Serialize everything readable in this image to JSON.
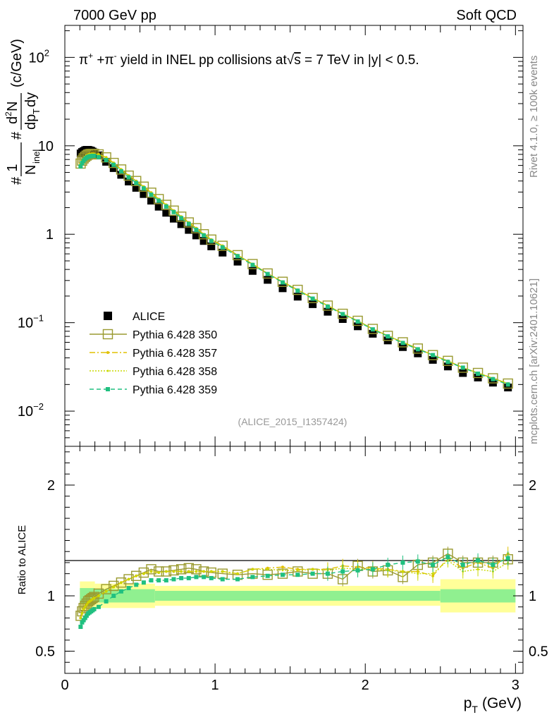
{
  "header": {
    "left": "7000 GeV pp",
    "right": "Soft QCD"
  },
  "side_labels": {
    "rivet": "Rivet 4.1.0, ≥ 100k events",
    "source": "mcplots.cern.ch [arXiv:2401.10621]"
  },
  "colors": {
    "data": "#000000",
    "p350": "#9a9a30",
    "p357": "#e0c000",
    "p358": "#c8d800",
    "p359": "#20c080",
    "band_inner": "#90f090",
    "band_outer": "#ffff99"
  },
  "chart_data": [
    {
      "type": "scatter",
      "panel": "main",
      "title": "π⁺ +π⁻ yield in INEL pp collisions at√s = 7 TeV in |y| < 0.5.",
      "title_parts": {
        "p1": "π",
        "sup1": "+",
        "p2": " +π",
        "sup2": "-",
        "p3": " yield in INEL pp collisions at",
        "sqrt": "√",
        "s": "s",
        "p4": " =  7 TeV in |y| < 0.5."
      },
      "ylabel": "#1/N_inel #d²N/dp_T dy (c/GeV)",
      "ylabel_parts": {
        "hash1": "#",
        "one": "1",
        "N": "N",
        "inel": "inel",
        "hash2": "#",
        "dN": "d",
        "sq": "2",
        "N2": "N",
        "dp": "dp",
        "T": "T",
        "dy": "dy",
        "units": "(c/GeV)"
      },
      "yscale": "log",
      "xlim": [
        0,
        3.05
      ],
      "ylim": [
        0.004,
        230
      ],
      "yticks": [
        {
          "value": 0.01,
          "base": "10",
          "exp": "−2"
        },
        {
          "value": 0.1,
          "base": "10",
          "exp": "−1"
        },
        {
          "value": 1,
          "base": "1",
          "exp": ""
        },
        {
          "value": 10,
          "base": "10",
          "exp": ""
        },
        {
          "value": 100,
          "base": "10",
          "exp": "2"
        }
      ],
      "watermark": "(ALICE_2015_I1357424)",
      "legend": {
        "position": "center-left",
        "entries": [
          "ALICE",
          "Pythia 6.428 350",
          "Pythia 6.428 357",
          "Pythia 6.428 358",
          "Pythia 6.428 359"
        ]
      },
      "x": [
        0.105,
        0.115,
        0.125,
        0.135,
        0.145,
        0.155,
        0.165,
        0.175,
        0.185,
        0.195,
        0.225,
        0.275,
        0.325,
        0.375,
        0.425,
        0.475,
        0.525,
        0.575,
        0.625,
        0.675,
        0.725,
        0.775,
        0.825,
        0.875,
        0.925,
        0.975,
        1.05,
        1.15,
        1.25,
        1.35,
        1.45,
        1.55,
        1.65,
        1.75,
        1.85,
        1.95,
        2.05,
        2.15,
        2.25,
        2.35,
        2.45,
        2.55,
        2.65,
        2.75,
        2.85,
        2.95
      ],
      "series": [
        {
          "name": "ALICE",
          "style": "data",
          "values": [
            8.2,
            8.5,
            8.7,
            8.9,
            9.0,
            9.0,
            8.9,
            8.8,
            8.6,
            8.4,
            7.8,
            6.6,
            5.6,
            4.7,
            3.95,
            3.35,
            2.85,
            2.4,
            2.05,
            1.75,
            1.5,
            1.3,
            1.12,
            0.97,
            0.84,
            0.73,
            0.62,
            0.49,
            0.385,
            0.305,
            0.245,
            0.197,
            0.162,
            0.133,
            0.11,
            0.091,
            0.075,
            0.063,
            0.053,
            0.045,
            0.038,
            0.032,
            0.027,
            0.024,
            0.021,
            0.0185
          ]
        },
        {
          "name": "Pythia 6.428 350",
          "style": "p350",
          "values": [
            6.3,
            6.8,
            7.2,
            7.5,
            7.75,
            7.95,
            8.05,
            8.1,
            8.12,
            8.1,
            8.0,
            7.4,
            6.4,
            5.4,
            4.6,
            4.0,
            3.45,
            2.95,
            2.5,
            2.15,
            1.85,
            1.58,
            1.36,
            1.17,
            1.0,
            0.87,
            0.74,
            0.58,
            0.46,
            0.36,
            0.29,
            0.235,
            0.19,
            0.156,
            0.126,
            0.105,
            0.085,
            0.071,
            0.06,
            0.051,
            0.043,
            0.037,
            0.031,
            0.027,
            0.0235,
            0.0205
          ]
        },
        {
          "name": "Pythia 6.428 357",
          "style": "p357",
          "values": [
            6.3,
            6.8,
            7.2,
            7.5,
            7.75,
            7.95,
            8.05,
            8.1,
            8.12,
            8.1,
            8.0,
            7.4,
            6.4,
            5.4,
            4.6,
            4.0,
            3.45,
            2.95,
            2.5,
            2.15,
            1.85,
            1.58,
            1.36,
            1.17,
            1.0,
            0.87,
            0.74,
            0.58,
            0.46,
            0.36,
            0.29,
            0.235,
            0.19,
            0.156,
            0.126,
            0.105,
            0.085,
            0.071,
            0.06,
            0.051,
            0.043,
            0.037,
            0.031,
            0.027,
            0.0235,
            0.0205
          ]
        },
        {
          "name": "Pythia 6.428 358",
          "style": "p358",
          "values": [
            6.3,
            6.8,
            7.2,
            7.5,
            7.75,
            7.95,
            8.05,
            8.1,
            8.12,
            8.1,
            8.0,
            7.4,
            6.4,
            5.4,
            4.6,
            4.0,
            3.45,
            2.95,
            2.5,
            2.15,
            1.85,
            1.58,
            1.36,
            1.17,
            1.0,
            0.87,
            0.74,
            0.58,
            0.46,
            0.36,
            0.29,
            0.235,
            0.19,
            0.156,
            0.126,
            0.105,
            0.085,
            0.071,
            0.06,
            0.051,
            0.043,
            0.037,
            0.031,
            0.027,
            0.0235,
            0.0205
          ]
        },
        {
          "name": "Pythia 6.428 359",
          "style": "p359",
          "values": [
            5.85,
            6.4,
            6.8,
            7.1,
            7.35,
            7.5,
            7.6,
            7.65,
            7.7,
            7.7,
            7.45,
            6.9,
            6.1,
            5.15,
            4.4,
            3.8,
            3.3,
            2.8,
            2.4,
            2.06,
            1.78,
            1.52,
            1.31,
            1.12,
            0.97,
            0.84,
            0.71,
            0.565,
            0.45,
            0.355,
            0.285,
            0.23,
            0.187,
            0.152,
            0.125,
            0.103,
            0.084,
            0.07,
            0.059,
            0.05,
            0.043,
            0.036,
            0.031,
            0.0265,
            0.023,
            0.02
          ]
        }
      ]
    },
    {
      "type": "scatter",
      "panel": "ratio",
      "ylabel": "Ratio to ALICE",
      "xlabel_parts": {
        "p": "p",
        "T": "T",
        "units": "(GeV)"
      },
      "xlim": [
        0,
        3.05
      ],
      "ylim": [
        0.3,
        2.35
      ],
      "xticks": [
        "0",
        "1",
        "2",
        "3"
      ],
      "yticks": [
        "0.5",
        "1",
        "2"
      ],
      "x": [
        0.105,
        0.115,
        0.125,
        0.135,
        0.145,
        0.155,
        0.165,
        0.175,
        0.185,
        0.195,
        0.225,
        0.275,
        0.325,
        0.375,
        0.425,
        0.475,
        0.525,
        0.575,
        0.625,
        0.675,
        0.725,
        0.775,
        0.825,
        0.875,
        0.925,
        0.975,
        1.05,
        1.15,
        1.25,
        1.35,
        1.45,
        1.55,
        1.65,
        1.75,
        1.85,
        1.95,
        2.05,
        2.15,
        2.25,
        2.35,
        2.45,
        2.55,
        2.65,
        2.75,
        2.85,
        2.95
      ],
      "band": {
        "x_edges": [
          0.1,
          0.2,
          0.6,
          2.5,
          3.0
        ],
        "inner_half_width": [
          0.07,
          0.06,
          0.045,
          0.06
        ],
        "outer_half_width": [
          0.13,
          0.11,
          0.09,
          0.15
        ]
      },
      "series": [
        {
          "name": "Pythia 6.428 350",
          "style": "p350",
          "values": [
            0.82,
            0.86,
            0.89,
            0.91,
            0.93,
            0.95,
            0.96,
            0.97,
            0.98,
            0.99,
            1.02,
            1.06,
            1.09,
            1.12,
            1.15,
            1.18,
            1.21,
            1.24,
            1.22,
            1.22,
            1.23,
            1.24,
            1.25,
            1.24,
            1.22,
            1.21,
            1.2,
            1.19,
            1.2,
            1.19,
            1.2,
            1.22,
            1.2,
            1.2,
            1.15,
            1.27,
            1.22,
            1.23,
            1.17,
            1.28,
            1.3,
            1.38,
            1.3,
            1.3,
            1.3,
            1.33
          ]
        },
        {
          "name": "Pythia 6.428 357",
          "style": "p357",
          "values": [
            0.8,
            0.84,
            0.88,
            0.9,
            0.92,
            0.94,
            0.95,
            0.96,
            0.97,
            0.98,
            1.0,
            1.04,
            1.08,
            1.12,
            1.15,
            1.18,
            1.2,
            1.22,
            1.21,
            1.22,
            1.22,
            1.22,
            1.22,
            1.22,
            1.22,
            1.22,
            1.22,
            1.2,
            1.24,
            1.25,
            1.26,
            1.24,
            1.24,
            1.24,
            1.27,
            1.26,
            1.25,
            1.24,
            1.22,
            1.22,
            1.18,
            1.34,
            1.25,
            1.3,
            1.25,
            1.38
          ]
        },
        {
          "name": "Pythia 6.428 358",
          "style": "p358",
          "values": [
            0.8,
            0.84,
            0.88,
            0.9,
            0.92,
            0.94,
            0.95,
            0.96,
            0.97,
            0.98,
            1.0,
            1.04,
            1.08,
            1.12,
            1.15,
            1.18,
            1.2,
            1.22,
            1.21,
            1.22,
            1.22,
            1.22,
            1.22,
            1.22,
            1.22,
            1.22,
            1.22,
            1.2,
            1.24,
            1.24,
            1.23,
            1.23,
            1.24,
            1.23,
            1.25,
            1.24,
            1.24,
            1.23,
            1.22,
            1.2,
            1.2,
            1.32,
            1.22,
            1.24,
            1.22,
            1.3
          ]
        },
        {
          "name": "Pythia 6.428 359",
          "style": "p359",
          "values": [
            0.72,
            0.76,
            0.78,
            0.8,
            0.82,
            0.84,
            0.85,
            0.86,
            0.87,
            0.88,
            0.9,
            0.95,
            1.0,
            1.04,
            1.07,
            1.1,
            1.12,
            1.14,
            1.14,
            1.14,
            1.15,
            1.16,
            1.16,
            1.17,
            1.17,
            1.16,
            1.15,
            1.15,
            1.17,
            1.18,
            1.19,
            1.19,
            1.2,
            1.2,
            1.22,
            1.23,
            1.24,
            1.28,
            1.3,
            1.31,
            1.28,
            1.35,
            1.28,
            1.32,
            1.28,
            1.34
          ]
        }
      ]
    }
  ]
}
